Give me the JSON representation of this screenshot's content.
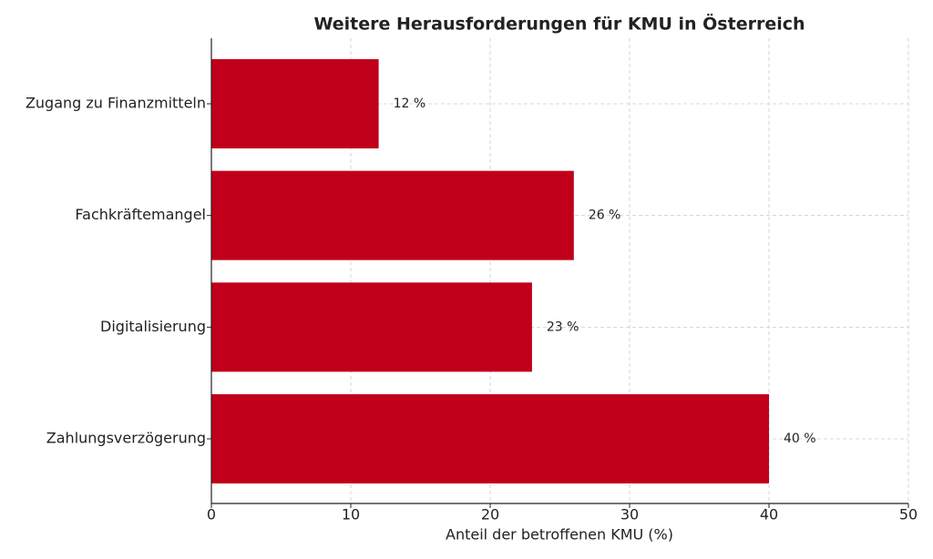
{
  "chart_data": {
    "type": "barh",
    "title": "Weitere Herausforderungen für KMU in Österreich",
    "xlabel": "Anteil der betroffenen KMU (%)",
    "categories": [
      "Zugang zu Finanzmitteln",
      "Fachkräftemangel",
      "Digitalisierung",
      "Zahlungsverzögerung"
    ],
    "values": [
      12,
      26,
      23,
      40
    ],
    "value_labels": [
      "12 %",
      "26 %",
      "23 %",
      "40 %"
    ],
    "color": "#c0001a",
    "xlim": [
      0,
      50
    ],
    "xticks": [
      0,
      10,
      20,
      30,
      40,
      50
    ],
    "grid": true
  }
}
